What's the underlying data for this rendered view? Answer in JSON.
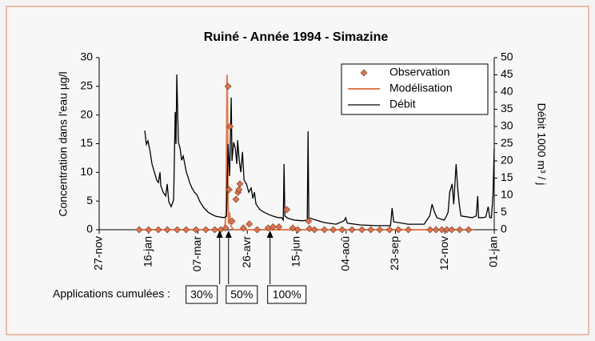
{
  "chart_data": {
    "type": "line",
    "title": "Ruiné - Année 1994 - Simazine",
    "y_label": "Concentration dans l'eau µg/l",
    "y2_label": "Débit 1000 m³ / j",
    "xlim": [
      0,
      400
    ],
    "xticks": [
      {
        "value": 0,
        "label": "27-nov"
      },
      {
        "value": 50,
        "label": "16-jan"
      },
      {
        "value": 100,
        "label": "07-mar"
      },
      {
        "value": 150,
        "label": "26-avr"
      },
      {
        "value": 200,
        "label": "15-jun"
      },
      {
        "value": 250,
        "label": "04-aoû"
      },
      {
        "value": 300,
        "label": "23-sep"
      },
      {
        "value": 350,
        "label": "12-nov"
      },
      {
        "value": 400,
        "label": "01-jan"
      }
    ],
    "ylim": [
      0,
      30
    ],
    "yticks": [
      0,
      5,
      10,
      15,
      20,
      25,
      30
    ],
    "y2lim": [
      0,
      50
    ],
    "y2ticks": [
      0,
      5,
      10,
      15,
      20,
      25,
      30,
      35,
      40,
      45,
      50
    ],
    "legend": "upper right",
    "series": [
      {
        "name": "Observation",
        "color": "#d9744f",
        "marker": "diamond",
        "x": [
          40.5,
          50,
          60,
          69,
          79,
          88,
          98,
          108,
          117,
          123,
          128,
          130.5,
          131.5,
          132.5,
          134.5,
          138.5,
          140.5,
          141.5,
          142.5,
          146,
          152,
          160,
          171,
          176,
          182,
          190,
          196,
          201,
          212,
          213,
          218,
          228,
          237,
          246,
          256,
          266,
          275,
          284,
          294,
          303,
          313,
          335,
          341,
          347,
          352,
          357,
          365,
          374
        ],
        "values": [
          0,
          0,
          0,
          0,
          0,
          0,
          0,
          0,
          0,
          0,
          0.3,
          25,
          7,
          18,
          1.5,
          5.3,
          6.5,
          7,
          8,
          0.3,
          1,
          0,
          0.3,
          0.5,
          0.5,
          3.5,
          0.3,
          0,
          1.5,
          0.2,
          0,
          0,
          0,
          0,
          0,
          0,
          0,
          0,
          0,
          0,
          0,
          0,
          0,
          0,
          0,
          0,
          0,
          0
        ]
      },
      {
        "name": "Modélisation",
        "color": "#e07b4f",
        "marker": "line",
        "x": [
          40,
          127,
          128.5,
          129.5,
          130,
          130.5,
          131,
          132,
          133,
          134,
          136,
          145,
          380
        ],
        "values": [
          0,
          0,
          3,
          27,
          20,
          5,
          1,
          3,
          1,
          0.5,
          0,
          0,
          0
        ]
      },
      {
        "name": "Débit",
        "color": "#000000",
        "marker": "line",
        "axis": "y2",
        "x": [
          46.2,
          47.8,
          49.4,
          51.1,
          53.5,
          55.9,
          58.3,
          60,
          61.6,
          62.4,
          64.8,
          67.3,
          68.9,
          70.5,
          72.9,
          75.4,
          77,
          77.8,
          78.6,
          80.2,
          81.9,
          83.5,
          85.1,
          86.7,
          88.3,
          90,
          91.6,
          94,
          96.4,
          98.9,
          102.1,
          106.2,
          110.2,
          114.3,
          118.3,
          122.4,
          126.4,
          128.9,
          130.5,
          132.1,
          133.7,
          134.5,
          136.1,
          137.8,
          139.4,
          140.2,
          141.8,
          143.4,
          145.1,
          146.7,
          149.1,
          151.5,
          153.9,
          155.6,
          157.2,
          158.8,
          162.9,
          166.9,
          171.8,
          176.7,
          181.5,
          184.8,
          186.4,
          187.2,
          188,
          191.2,
          197.7,
          205.8,
          210.7,
          211.5,
          212.3,
          219.6,
          227.7,
          239.9,
          248,
          249.6,
          251.2,
          264.2,
          280.4,
          295,
          296.6,
          298.2,
          312.8,
          329,
          334.7,
          337.1,
          339.5,
          342,
          349.3,
          351.7,
          353.3,
          354.9,
          357.4,
          359,
          361.4,
          363,
          364.6,
          366.3,
          377.6,
          381.7,
          383.3,
          384.1,
          388.2,
          391.4,
          393.9,
          395.5,
          397.1,
          398.7,
          400
        ],
        "values": [
          28.8,
          24.8,
          25.8,
          23.5,
          19.1,
          16.7,
          14.4,
          13.7,
          16.7,
          12.8,
          10.9,
          9.8,
          13.3,
          8.1,
          6.7,
          8.6,
          34.2,
          24.9,
          45.1,
          25.4,
          23.7,
          20.2,
          21.4,
          19.1,
          16.7,
          15.3,
          13.7,
          12.1,
          10.9,
          10.2,
          8.1,
          6.3,
          5.1,
          4.4,
          3.9,
          3.7,
          3.5,
          3.9,
          24.9,
          15.6,
          38.4,
          20,
          25.4,
          23.7,
          19.1,
          26,
          20.2,
          16.7,
          22.6,
          14.4,
          13.3,
          10.9,
          12.1,
          9.1,
          10.9,
          7.4,
          5.8,
          5.1,
          4.4,
          3.9,
          3.5,
          3.5,
          2.8,
          19.1,
          4,
          3.3,
          2.8,
          2.6,
          2.8,
          28.6,
          3.5,
          2.8,
          2.1,
          1.6,
          2.6,
          3.5,
          1.9,
          1.4,
          1.2,
          1.2,
          6.3,
          2.3,
          1.6,
          1.6,
          4,
          7.4,
          5.1,
          3.5,
          2.8,
          4,
          5.1,
          10.9,
          13.3,
          7.4,
          19.1,
          12.1,
          7.4,
          4,
          3.5,
          4,
          9.8,
          3.5,
          3.5,
          3.7,
          6.7,
          3.5,
          3.5,
          9.8,
          23.7
        ]
      }
    ],
    "annotation": {
      "text": "Applications cumulées :",
      "items": [
        {
          "label": "30%",
          "x": 122
        },
        {
          "label": "50%",
          "x": 131
        },
        {
          "label": "100%",
          "x": 173
        }
      ]
    }
  }
}
